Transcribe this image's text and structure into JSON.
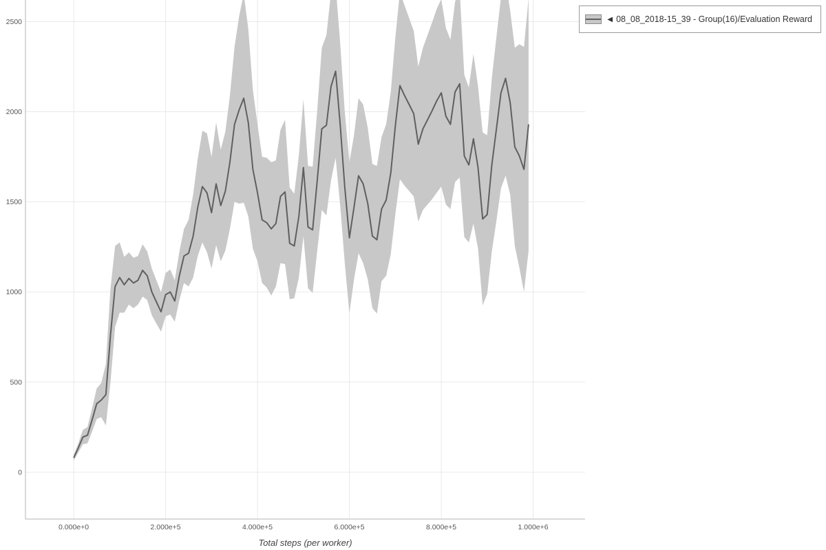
{
  "legend": {
    "collapse_glyph": "◀",
    "label": "08_08_2018-15_39 - Group(16)/Evaluation Reward"
  },
  "chart_data": {
    "type": "line",
    "title": "",
    "xlabel": "Total steps (per worker)",
    "ylabel": "",
    "series_name": "08_08_2018-15_39 - Group(16)/Evaluation Reward",
    "grid": true,
    "legend_position": "top-right",
    "xlim": [
      -105000,
      1113000
    ],
    "ylim": [
      -260,
      2620
    ],
    "x_start": 0,
    "x_step": 10000,
    "mean": [
      80,
      135,
      195,
      205,
      290,
      380,
      400,
      430,
      760,
      1030,
      1080,
      1040,
      1075,
      1050,
      1065,
      1120,
      1090,
      1000,
      945,
      890,
      985,
      1000,
      950,
      1090,
      1200,
      1215,
      1310,
      1470,
      1585,
      1550,
      1440,
      1600,
      1480,
      1560,
      1720,
      1930,
      2010,
      2075,
      1940,
      1680,
      1550,
      1400,
      1385,
      1350,
      1380,
      1530,
      1555,
      1270,
      1255,
      1420,
      1690,
      1360,
      1345,
      1620,
      1905,
      1925,
      2140,
      2225,
      1930,
      1580,
      1300,
      1470,
      1645,
      1600,
      1490,
      1310,
      1290,
      1460,
      1510,
      1660,
      1920,
      2145,
      2090,
      2040,
      1990,
      1820,
      1905,
      1955,
      2005,
      2060,
      2105,
      1975,
      1930,
      2110,
      2155,
      1755,
      1705,
      1850,
      1690,
      1405,
      1430,
      1705,
      1905,
      2105,
      2185,
      2050,
      1805,
      1755,
      1680,
      1930
    ],
    "std": [
      15,
      25,
      40,
      45,
      65,
      85,
      95,
      170,
      260,
      225,
      195,
      155,
      145,
      140,
      135,
      145,
      135,
      130,
      120,
      110,
      120,
      125,
      115,
      135,
      150,
      185,
      230,
      270,
      310,
      330,
      310,
      340,
      310,
      330,
      370,
      430,
      520,
      580,
      520,
      440,
      380,
      350,
      360,
      370,
      350,
      370,
      400,
      310,
      290,
      340,
      380,
      340,
      350,
      390,
      450,
      500,
      520,
      480,
      450,
      420,
      420,
      400,
      430,
      440,
      420,
      400,
      410,
      400,
      420,
      450,
      490,
      520,
      500,
      480,
      460,
      430,
      450,
      470,
      490,
      510,
      520,
      490,
      470,
      500,
      520,
      450,
      430,
      470,
      450,
      480,
      440,
      480,
      510,
      530,
      540,
      510,
      550,
      620,
      680,
      700
    ],
    "x_ticks": [
      {
        "value": 0,
        "label": "0.000e+0"
      },
      {
        "value": 200000,
        "label": "2.000e+5"
      },
      {
        "value": 400000,
        "label": "4.000e+5"
      },
      {
        "value": 600000,
        "label": "6.000e+5"
      },
      {
        "value": 800000,
        "label": "8.000e+5"
      },
      {
        "value": 1000000,
        "label": "1.000e+6"
      }
    ],
    "y_ticks": [
      {
        "value": 0,
        "label": "0"
      },
      {
        "value": 500,
        "label": "500"
      },
      {
        "value": 1000,
        "label": "1000"
      },
      {
        "value": 1500,
        "label": "1500"
      },
      {
        "value": 2000,
        "label": "2000"
      },
      {
        "value": 2500,
        "label": "2500"
      }
    ],
    "line_color": "#5f5f5f",
    "band_color": "#c8c8c8",
    "grid_color": "#e9e9e9",
    "axis_color": "#b3b3b3"
  }
}
